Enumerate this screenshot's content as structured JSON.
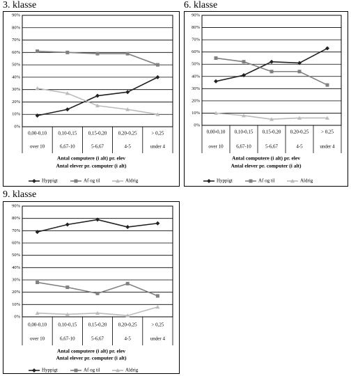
{
  "chart_data": [
    {
      "type": "line",
      "title": "3. klasse",
      "categories": [
        "0,00-0,10",
        "0,10-0,15",
        "0,15-0,20",
        "0,20-0,25",
        "> 0,25"
      ],
      "sub_categories": [
        "over 10",
        "6,67-10",
        "5-6,67",
        "4-5",
        "under 4"
      ],
      "x_label": "Antal computere (i alt) pr. elev",
      "x_label2": "Antal elever pr. computer (i alt)",
      "ylim": [
        0,
        90
      ],
      "yticks": [
        {
          "value": 0,
          "label": "0%"
        },
        {
          "value": 10,
          "label": "10%"
        },
        {
          "value": 20,
          "label": "20%"
        },
        {
          "value": 30,
          "label": "30%"
        },
        {
          "value": 40,
          "label": "40%"
        },
        {
          "value": 50,
          "label": "50%"
        },
        {
          "value": 60,
          "label": "60%"
        },
        {
          "value": 70,
          "label": "70%"
        },
        {
          "value": 80,
          "label": "80%"
        },
        {
          "value": 90,
          "label": "90%"
        }
      ],
      "grid": true,
      "legend": "bottom",
      "series": [
        {
          "name": "Hyppigt",
          "color": "#222222",
          "marker": "diamond",
          "values": [
            9,
            14,
            25,
            28,
            40
          ]
        },
        {
          "name": "Af og til",
          "color": "#808080",
          "marker": "square",
          "values": [
            61,
            60,
            59,
            59,
            50
          ]
        },
        {
          "name": "Aldrig",
          "color": "#bbbbbb",
          "marker": "triangle",
          "values": [
            31,
            27,
            17,
            14,
            10
          ]
        }
      ]
    },
    {
      "type": "line",
      "title": "6. klasse",
      "categories": [
        "0,00-0,10",
        "0,10-0,15",
        "0,15-0,20",
        "0,20-0,25",
        "> 0,25"
      ],
      "sub_categories": [
        "over 10",
        "6,67-10",
        "5-6,67",
        "4-5",
        "under 4"
      ],
      "x_label": "Antal computere (i alt) pr. elev",
      "x_label2": "Antal elever pr. computer (i alt)",
      "ylim": [
        0,
        90
      ],
      "yticks": [
        {
          "value": 0,
          "label": "0%"
        },
        {
          "value": 10,
          "label": "10%"
        },
        {
          "value": 20,
          "label": "20%"
        },
        {
          "value": 30,
          "label": "30%"
        },
        {
          "value": 40,
          "label": "40%"
        },
        {
          "value": 50,
          "label": "50%"
        },
        {
          "value": 60,
          "label": "60%"
        },
        {
          "value": 70,
          "label": "70%"
        },
        {
          "value": 80,
          "label": "80%"
        },
        {
          "value": 90,
          "label": "90%"
        }
      ],
      "grid": true,
      "legend": "bottom",
      "series": [
        {
          "name": "Hyppigt",
          "color": "#222222",
          "marker": "diamond",
          "values": [
            36,
            41,
            52,
            51,
            63
          ]
        },
        {
          "name": "Af og til",
          "color": "#808080",
          "marker": "square",
          "values": [
            55,
            52,
            44,
            44,
            33
          ]
        },
        {
          "name": "Aldrig",
          "color": "#bbbbbb",
          "marker": "triangle",
          "values": [
            10,
            8,
            5,
            6,
            6
          ]
        }
      ]
    },
    {
      "type": "line",
      "title": "9. klasse",
      "categories": [
        "0,00-0,10",
        "0,10-0,15",
        "0,15-0,20",
        "0,20-0,25",
        "> 0,25"
      ],
      "sub_categories": [
        "over 10",
        "6,67-10",
        "5-6,67",
        "4-5",
        "under 4"
      ],
      "x_label": "Antal computere (i alt) pr. elev",
      "x_label2": "Antal elever pr. computer (i alt)",
      "ylim": [
        0,
        90
      ],
      "yticks": [
        {
          "value": 0,
          "label": "0%"
        },
        {
          "value": 10,
          "label": "10%"
        },
        {
          "value": 20,
          "label": "20%"
        },
        {
          "value": 30,
          "label": "30%"
        },
        {
          "value": 40,
          "label": "40%"
        },
        {
          "value": 50,
          "label": "50%"
        },
        {
          "value": 60,
          "label": "60%"
        },
        {
          "value": 70,
          "label": "70%"
        },
        {
          "value": 80,
          "label": "80%"
        },
        {
          "value": 90,
          "label": "90%"
        }
      ],
      "grid": true,
      "legend": "bottom",
      "series": [
        {
          "name": "Hyppigt",
          "color": "#222222",
          "marker": "diamond",
          "values": [
            69,
            75,
            79,
            73,
            76
          ]
        },
        {
          "name": "Af og til",
          "color": "#808080",
          "marker": "square",
          "values": [
            28,
            24,
            19,
            27,
            17
          ]
        },
        {
          "name": "Aldrig",
          "color": "#bbbbbb",
          "marker": "triangle",
          "values": [
            3,
            2,
            3,
            1,
            8
          ]
        }
      ]
    }
  ]
}
